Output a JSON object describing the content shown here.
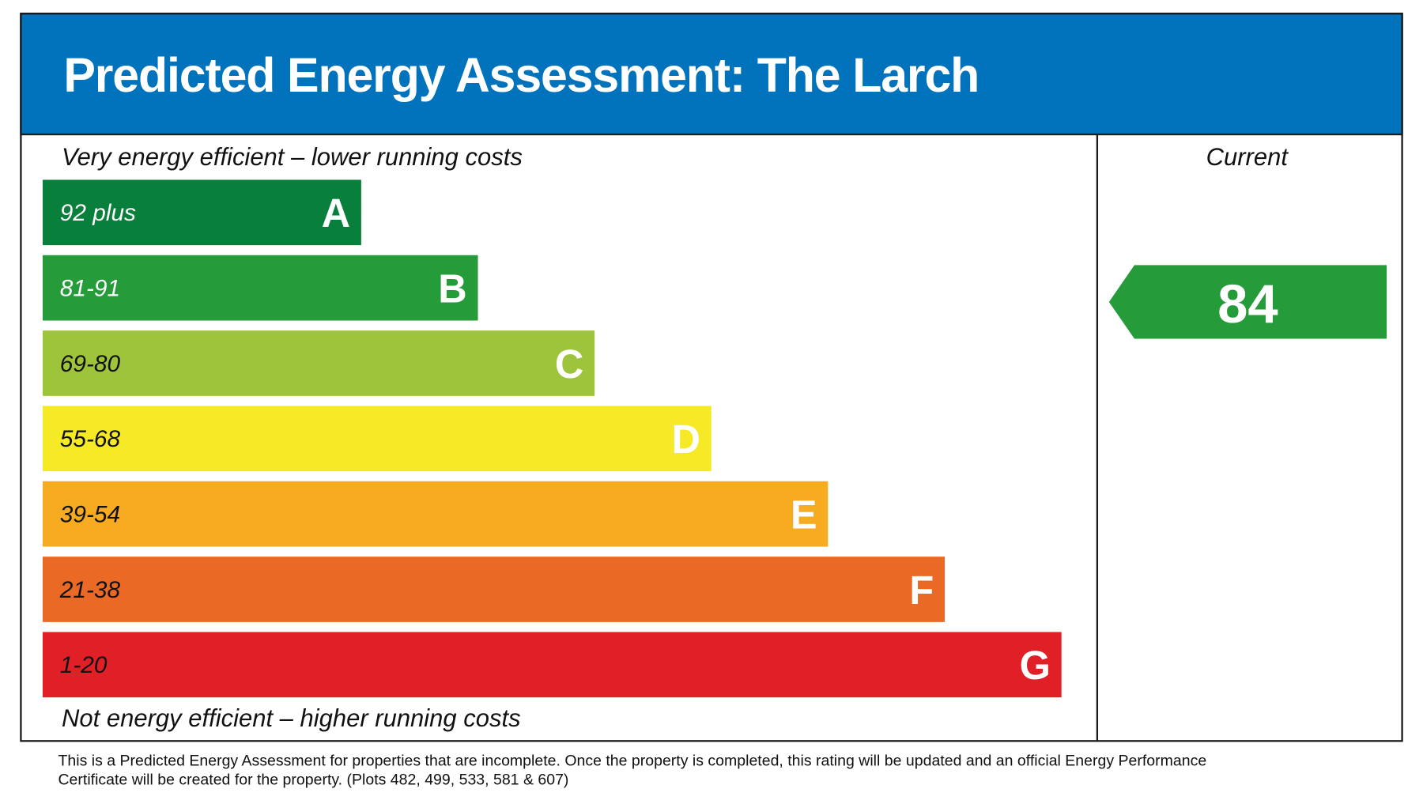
{
  "header": {
    "title": "Predicted Energy Assessment: The Larch"
  },
  "top_label": "Very energy efficient – lower running costs",
  "bottom_label": "Not energy efficient – higher running costs",
  "bands": [
    {
      "range": "92 plus",
      "letter": "A",
      "color": "#087f3a"
    },
    {
      "range": "81-91",
      "letter": "B",
      "color": "#269b3a"
    },
    {
      "range": "69-80",
      "letter": "C",
      "color": "#9ec43c"
    },
    {
      "range": "55-68",
      "letter": "D",
      "color": "#f6e926"
    },
    {
      "range": "39-54",
      "letter": "E",
      "color": "#f6ab20"
    },
    {
      "range": "21-38",
      "letter": "F",
      "color": "#ea6925"
    },
    {
      "range": "1-20",
      "letter": "G",
      "color": "#e11f26"
    }
  ],
  "current": {
    "label": "Current",
    "value": 84,
    "color": "#269b3a"
  },
  "footnote": [
    "This is a Predicted Energy Assessment for properties that are incomplete. Once the property is completed, this rating will be updated and an official Energy Performance",
    "Certificate will be created for the property. (Plots 482, 499, 533, 581 & 607)"
  ]
}
